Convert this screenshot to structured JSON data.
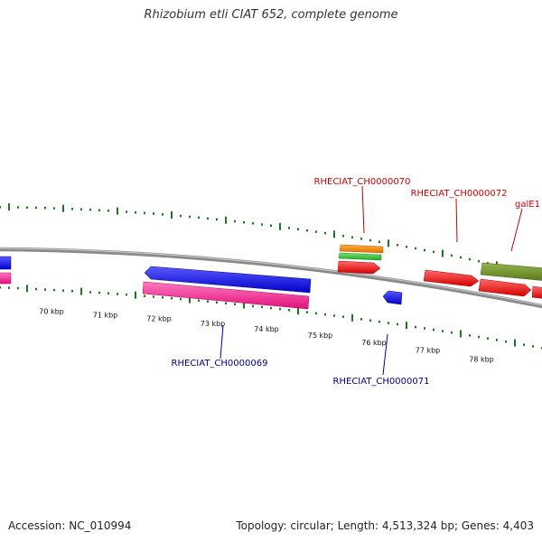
{
  "title": "Rhizobium etli CIAT 652, complete genome",
  "footer": {
    "accession": "Accession: NC_010994",
    "topology": "Topology: circular; Length: 4,513,324 bp; Genes: 4,403"
  },
  "scale": {
    "tick_labels": [
      "70 kbp",
      "71 kbp",
      "72 kbp",
      "73 kbp",
      "74 kbp",
      "75 kbp",
      "76 kbp",
      "77 kbp",
      "78 kbp"
    ]
  },
  "gene_labels": [
    {
      "text": "RHECIAT_CH0000070",
      "strand": "forward",
      "color": "#cc0000"
    },
    {
      "text": "RHECIAT_CH0000072",
      "strand": "forward",
      "color": "#cc0000"
    },
    {
      "text": "galE1",
      "strand": "forward",
      "color": "#cc0000"
    },
    {
      "text": "RHECIAT_CH0000069",
      "strand": "reverse",
      "color": "#00008b"
    },
    {
      "text": "RHECIAT_CH0000071",
      "strand": "reverse",
      "color": "#00008b"
    }
  ],
  "colors": {
    "backbone": "#8a8a8a",
    "tick_marks": "#1a7a1a",
    "cds_forward": "#ff0000",
    "cds_reverse": "#0000ee",
    "gene_pink": "#ff2090",
    "orange": "#ff8c00",
    "green": "#33cc33",
    "olive": "#6b8e23"
  }
}
